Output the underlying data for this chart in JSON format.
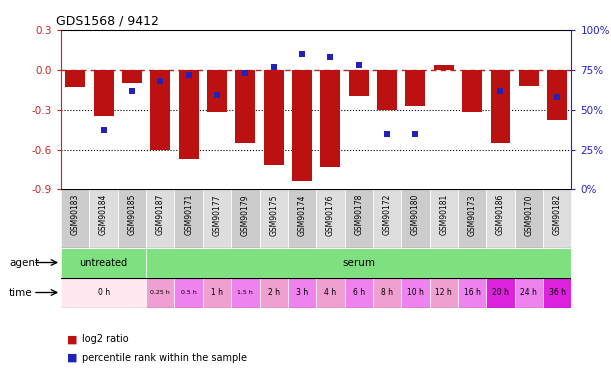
{
  "title": "GDS1568 / 9412",
  "samples": [
    "GSM90183",
    "GSM90184",
    "GSM90185",
    "GSM90187",
    "GSM90171",
    "GSM90177",
    "GSM90179",
    "GSM90175",
    "GSM90174",
    "GSM90176",
    "GSM90178",
    "GSM90172",
    "GSM90180",
    "GSM90181",
    "GSM90173",
    "GSM90186",
    "GSM90170",
    "GSM90182"
  ],
  "log2_ratio": [
    -0.13,
    -0.35,
    -0.1,
    -0.6,
    -0.67,
    -0.32,
    -0.55,
    -0.72,
    -0.84,
    -0.73,
    -0.2,
    -0.3,
    -0.27,
    0.04,
    -0.32,
    -0.55,
    -0.12,
    -0.38
  ],
  "percentile_rank": [
    null,
    0.37,
    0.62,
    0.68,
    0.72,
    0.59,
    0.73,
    0.77,
    0.85,
    0.83,
    0.78,
    0.35,
    0.35,
    null,
    null,
    0.62,
    null,
    0.58
  ],
  "ylim": [
    -0.9,
    0.3
  ],
  "yticks_left": [
    0.3,
    0.0,
    -0.3,
    -0.6,
    -0.9
  ],
  "yticks_right": [
    100,
    75,
    50,
    25,
    0
  ],
  "hline_y": 0.0,
  "dotted_lines": [
    -0.3,
    -0.6
  ],
  "bar_color": "#BB1111",
  "dot_color": "#2222BB",
  "hline_color": "#BB2222",
  "label_color_left": "#CC2222",
  "label_color_right": "#2222CC",
  "n_samples": 18,
  "bar_width": 0.7,
  "legend_red": "log2 ratio",
  "legend_blue": "percentile rank within the sample",
  "time_positions": [
    {
      "label": "0 h",
      "start": 0,
      "end": 3,
      "color": "#FFE8F0"
    },
    {
      "label": "0.25 h",
      "start": 3,
      "end": 4,
      "color": "#F0A0D0"
    },
    {
      "label": "0.5 h",
      "start": 4,
      "end": 5,
      "color": "#EE82EE"
    },
    {
      "label": "1 h",
      "start": 5,
      "end": 6,
      "color": "#F0A0D0"
    },
    {
      "label": "1.5 h",
      "start": 6,
      "end": 7,
      "color": "#EE82EE"
    },
    {
      "label": "2 h",
      "start": 7,
      "end": 8,
      "color": "#F0A0D0"
    },
    {
      "label": "3 h",
      "start": 8,
      "end": 9,
      "color": "#EE82EE"
    },
    {
      "label": "4 h",
      "start": 9,
      "end": 10,
      "color": "#F0A0D0"
    },
    {
      "label": "6 h",
      "start": 10,
      "end": 11,
      "color": "#EE82EE"
    },
    {
      "label": "8 h",
      "start": 11,
      "end": 12,
      "color": "#F0A0D0"
    },
    {
      "label": "10 h",
      "start": 12,
      "end": 13,
      "color": "#EE82EE"
    },
    {
      "label": "12 h",
      "start": 13,
      "end": 14,
      "color": "#F0A0D0"
    },
    {
      "label": "16 h",
      "start": 14,
      "end": 15,
      "color": "#EE82EE"
    },
    {
      "label": "20 h",
      "start": 15,
      "end": 16,
      "color": "#DD22DD"
    },
    {
      "label": "24 h",
      "start": 16,
      "end": 17,
      "color": "#EE82EE"
    },
    {
      "label": "36 h",
      "start": 17,
      "end": 18,
      "color": "#DD22DD"
    }
  ]
}
